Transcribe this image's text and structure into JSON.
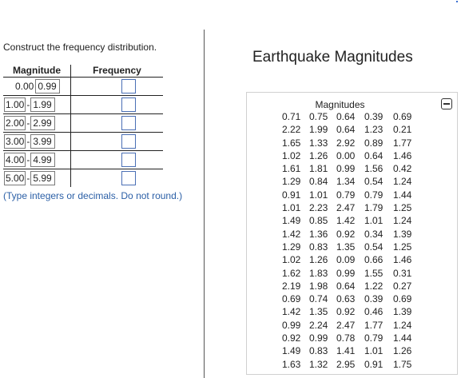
{
  "instruction": "Construct the frequency distribution.",
  "table": {
    "header_magnitude": "Magnitude",
    "header_frequency": "Frequency",
    "rows": [
      {
        "low": "0.00",
        "high": "0.99"
      },
      {
        "low": "1.00",
        "high": "1.99"
      },
      {
        "low": "2.00",
        "high": "2.99"
      },
      {
        "low": "3.00",
        "high": "3.99"
      },
      {
        "low": "4.00",
        "high": "4.99"
      },
      {
        "low": "5.00",
        "high": "5.99"
      }
    ],
    "dash": "-"
  },
  "note": "(Type integers or decimals. Do not round.)",
  "panel": {
    "title": "Earthquake Magnitudes",
    "data_title": "Magnitudes",
    "values": [
      [
        "0.71",
        "0.75",
        "0.64",
        "0.39",
        "0.69"
      ],
      [
        "2.22",
        "1.99",
        "0.64",
        "1.23",
        "0.21"
      ],
      [
        "1.65",
        "1.33",
        "2.92",
        "0.89",
        "1.77"
      ],
      [
        "1.02",
        "1.26",
        "0.00",
        "0.64",
        "1.46"
      ],
      [
        "1.61",
        "1.81",
        "0.99",
        "1.56",
        "0.42"
      ],
      [
        "1.29",
        "0.84",
        "1.34",
        "0.54",
        "1.24"
      ],
      [
        "0.91",
        "1.01",
        "0.79",
        "0.79",
        "1.44"
      ],
      [
        "1.01",
        "2.23",
        "2.47",
        "1.79",
        "1.25"
      ],
      [
        "1.49",
        "0.85",
        "1.42",
        "1.01",
        "1.24"
      ],
      [
        "1.42",
        "1.36",
        "0.92",
        "0.34",
        "1.39"
      ],
      [
        "1.29",
        "0.83",
        "1.35",
        "0.54",
        "1.25"
      ],
      [
        "1.02",
        "1.26",
        "0.09",
        "0.66",
        "1.46"
      ],
      [
        "1.62",
        "1.83",
        "0.99",
        "1.55",
        "0.31"
      ],
      [
        "2.19",
        "1.98",
        "0.64",
        "1.22",
        "0.27"
      ],
      [
        "0.69",
        "0.74",
        "0.63",
        "0.39",
        "0.69"
      ],
      [
        "1.42",
        "1.35",
        "0.92",
        "0.46",
        "1.39"
      ],
      [
        "0.99",
        "2.24",
        "2.47",
        "1.77",
        "1.24"
      ],
      [
        "0.92",
        "0.99",
        "0.78",
        "0.79",
        "1.44"
      ],
      [
        "1.49",
        "0.83",
        "1.41",
        "1.01",
        "1.26"
      ],
      [
        "1.63",
        "1.32",
        "2.95",
        "0.91",
        "1.75"
      ]
    ]
  },
  "colors": {
    "note_text": "#2b5fa6",
    "input_border": "#4a6fb5"
  }
}
